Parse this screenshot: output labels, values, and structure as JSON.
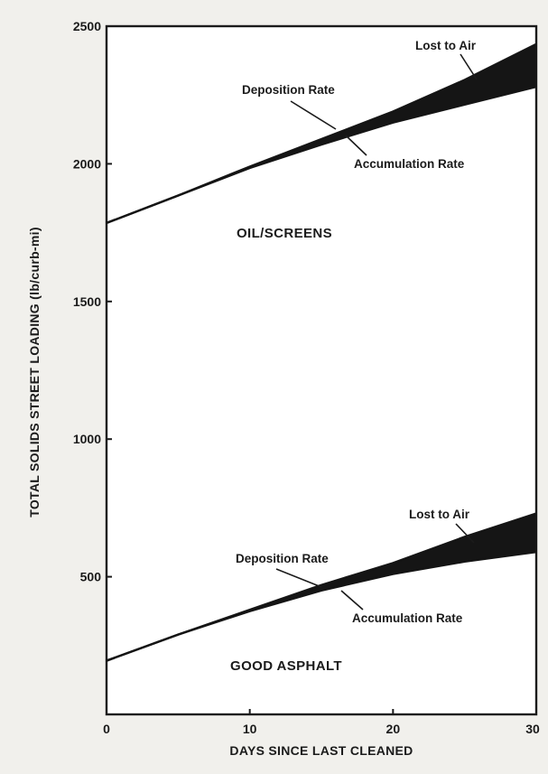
{
  "chart_data": {
    "type": "area",
    "xlabel": "DAYS SINCE LAST CLEANED",
    "ylabel": "TOTAL SOLIDS STREET LOADING (lb/curb-mi)",
    "xlim": [
      0,
      30
    ],
    "ylim": [
      0,
      2500
    ],
    "x_ticks": [
      0,
      10,
      20,
      30
    ],
    "y_ticks": [
      500,
      1000,
      1500,
      2000,
      2500
    ],
    "grid": false,
    "panels": [
      {
        "label": "OIL/SCREENS",
        "series": [
          {
            "name": "Deposition Rate",
            "x": [
              0,
              5,
              10,
              15,
              20,
              25,
              30
            ],
            "y": [
              1785,
              1885,
              1990,
              2090,
              2190,
              2305,
              2435
            ]
          },
          {
            "name": "Accumulation Rate",
            "x": [
              0,
              5,
              10,
              15,
              20,
              25,
              30
            ],
            "y": [
              1785,
              1885,
              1985,
              2070,
              2150,
              2215,
              2280
            ]
          }
        ],
        "band_label": "Lost to Air"
      },
      {
        "label": "GOOD ASPHALT",
        "series": [
          {
            "name": "Deposition Rate",
            "x": [
              0,
              5,
              10,
              15,
              20,
              25,
              30
            ],
            "y": [
              195,
              290,
              380,
              470,
              550,
              645,
              730
            ]
          },
          {
            "name": "Accumulation Rate",
            "x": [
              0,
              5,
              10,
              15,
              20,
              25,
              30
            ],
            "y": [
              195,
              290,
              375,
              450,
              510,
              555,
              590
            ]
          }
        ],
        "band_label": "Lost to Air"
      }
    ]
  }
}
